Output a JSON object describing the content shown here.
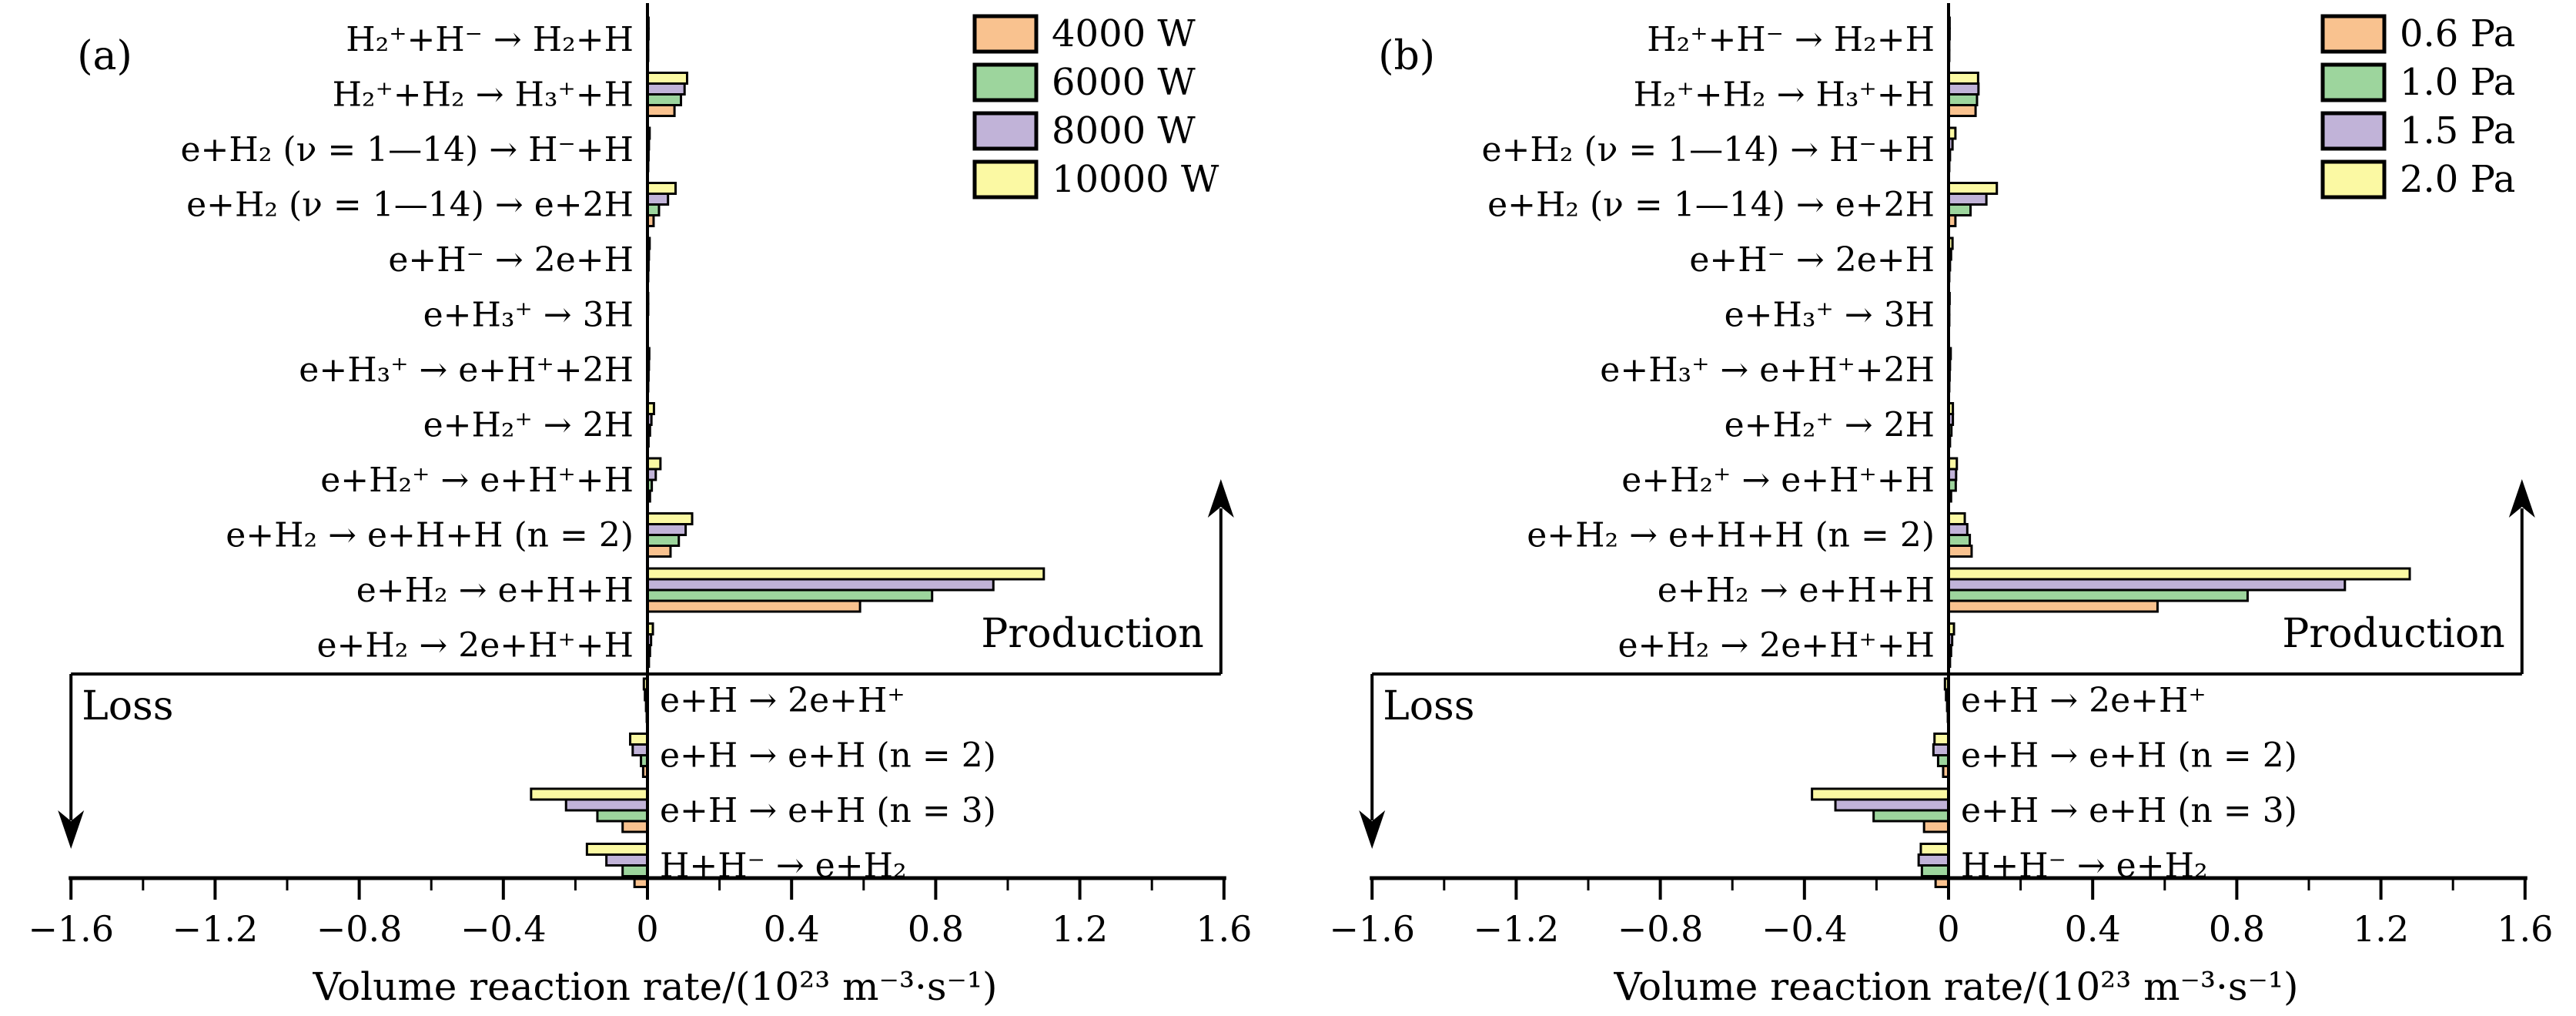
{
  "figure": {
    "description": "Volume reaction rates of H2 plasma production and loss channels",
    "axis_color": "#000000",
    "background": "#ffffff",
    "annotations": {
      "production_label": "Production",
      "loss_label": "Loss"
    },
    "xlabel": "Volume reaction rate/(10²³ m⁻³·s⁻¹)",
    "x_ticks": {
      "values": [
        -1.6,
        -1.2,
        -0.8,
        -0.4,
        0,
        0.4,
        0.8,
        1.2,
        1.6
      ],
      "labels": [
        "−1.6",
        "−1.2",
        "−0.8",
        "−0.4",
        "0",
        "0.4",
        "0.8",
        "1.2",
        "1.6"
      ],
      "minor_step": 0.2
    }
  },
  "chart_data": [
    {
      "type": "bar",
      "orientation": "horizontal",
      "panel_label": "(a)",
      "xlabel": "Volume reaction rate/(10²³ m⁻³·s⁻¹)",
      "xlim": [
        -1.6,
        1.6
      ],
      "legend_position": "top-right",
      "grid": false,
      "categories": [
        "H₂⁺+H⁻ → H₂+H",
        "H₂⁺+H₂ → H₃⁺+H",
        "e+H₂ (ν = 1—14) →  H⁻+H",
        "e+H₂ (ν = 1—14) → e+2H",
        "e+H⁻ → 2e+H",
        "e+H₃⁺ → 3H",
        "e+H₃⁺ → e+H⁺+2H",
        "e+H₂⁺ → 2H",
        "e+H₂⁺ → e+H⁺+H",
        "e+H₂ → e+H+H (n = 2)",
        "e+H₂ → e+H+H",
        "e+H₂ → 2e+H⁺+H",
        "e+H → 2e+H⁺",
        "e+H → e+H (n = 2)",
        "e+H → e+H (n = 3)",
        "H+H⁻ → e+H₂"
      ],
      "series": [
        {
          "name": "4000 W",
          "color": "#F9C28F",
          "values": [
            0.002,
            0.075,
            0.002,
            0.017,
            0.002,
            0.001,
            0.002,
            0.003,
            0.007,
            0.064,
            0.59,
            0.004,
            -0.002,
            -0.012,
            -0.069,
            -0.036
          ]
        },
        {
          "name": "6000 W",
          "color": "#9DD59D",
          "values": [
            0.002,
            0.093,
            0.003,
            0.032,
            0.003,
            0.001,
            0.003,
            0.007,
            0.012,
            0.087,
            0.79,
            0.007,
            -0.004,
            -0.018,
            -0.139,
            -0.069
          ]
        },
        {
          "name": "8000 W",
          "color": "#C1B3D8",
          "values": [
            0.003,
            0.103,
            0.004,
            0.057,
            0.004,
            0.002,
            0.004,
            0.011,
            0.023,
            0.106,
            0.96,
            0.01,
            -0.007,
            -0.041,
            -0.226,
            -0.114
          ]
        },
        {
          "name": "10000 W",
          "color": "#FBF9A3",
          "values": [
            0.003,
            0.11,
            0.006,
            0.078,
            0.006,
            0.002,
            0.005,
            0.018,
            0.036,
            0.124,
            1.1,
            0.015,
            -0.01,
            -0.048,
            -0.323,
            -0.168
          ]
        }
      ]
    },
    {
      "type": "bar",
      "orientation": "horizontal",
      "panel_label": "(b)",
      "xlabel": "Volume reaction rate/(10²³ m⁻³·s⁻¹)",
      "xlim": [
        -1.6,
        1.6
      ],
      "legend_position": "top-right",
      "grid": false,
      "categories": [
        "H₂⁺+H⁻ → H₂+H",
        "H₂⁺+H₂ → H₃⁺+H",
        "e+H₂ (ν = 1—14) →  H⁻+H",
        "e+H₂ (ν = 1—14) → e+2H",
        "e+H⁻ → 2e+H",
        "e+H₃⁺ → 3H",
        "e+H₃⁺ → e+H⁺+2H",
        "e+H₂⁺ → 2H",
        "e+H₂⁺ → e+H⁺+H",
        "e+H₂ → e+H+H (n = 2)",
        "e+H₂ → e+H+H",
        "e+H₂ → 2e+H⁺+H",
        "e+H → 2e+H⁺",
        "e+H → e+H (n = 2)",
        "e+H → e+H (n = 3)",
        "H+H⁻ → e+H₂"
      ],
      "series": [
        {
          "name": "0.6 Pa",
          "color": "#F9C28F",
          "values": [
            0.002,
            0.075,
            0.002,
            0.019,
            0.002,
            0.001,
            0.002,
            0.004,
            0.007,
            0.064,
            0.58,
            0.004,
            -0.002,
            -0.015,
            -0.068,
            -0.036
          ]
        },
        {
          "name": "1.0 Pa",
          "color": "#9DD59D",
          "values": [
            0.002,
            0.079,
            0.004,
            0.061,
            0.004,
            0.002,
            0.003,
            0.008,
            0.02,
            0.059,
            0.83,
            0.007,
            -0.004,
            -0.029,
            -0.208,
            -0.074
          ]
        },
        {
          "name": "1.5 Pa",
          "color": "#C1B3D8",
          "values": [
            0.003,
            0.083,
            0.011,
            0.105,
            0.007,
            0.002,
            0.004,
            0.012,
            0.021,
            0.052,
            1.1,
            0.01,
            -0.007,
            -0.042,
            -0.314,
            -0.083
          ]
        },
        {
          "name": "2.0 Pa",
          "color": "#FBF9A3",
          "values": [
            0.003,
            0.082,
            0.019,
            0.134,
            0.011,
            0.003,
            0.006,
            0.012,
            0.023,
            0.045,
            1.28,
            0.015,
            -0.01,
            -0.039,
            -0.379,
            -0.077
          ]
        }
      ]
    }
  ]
}
